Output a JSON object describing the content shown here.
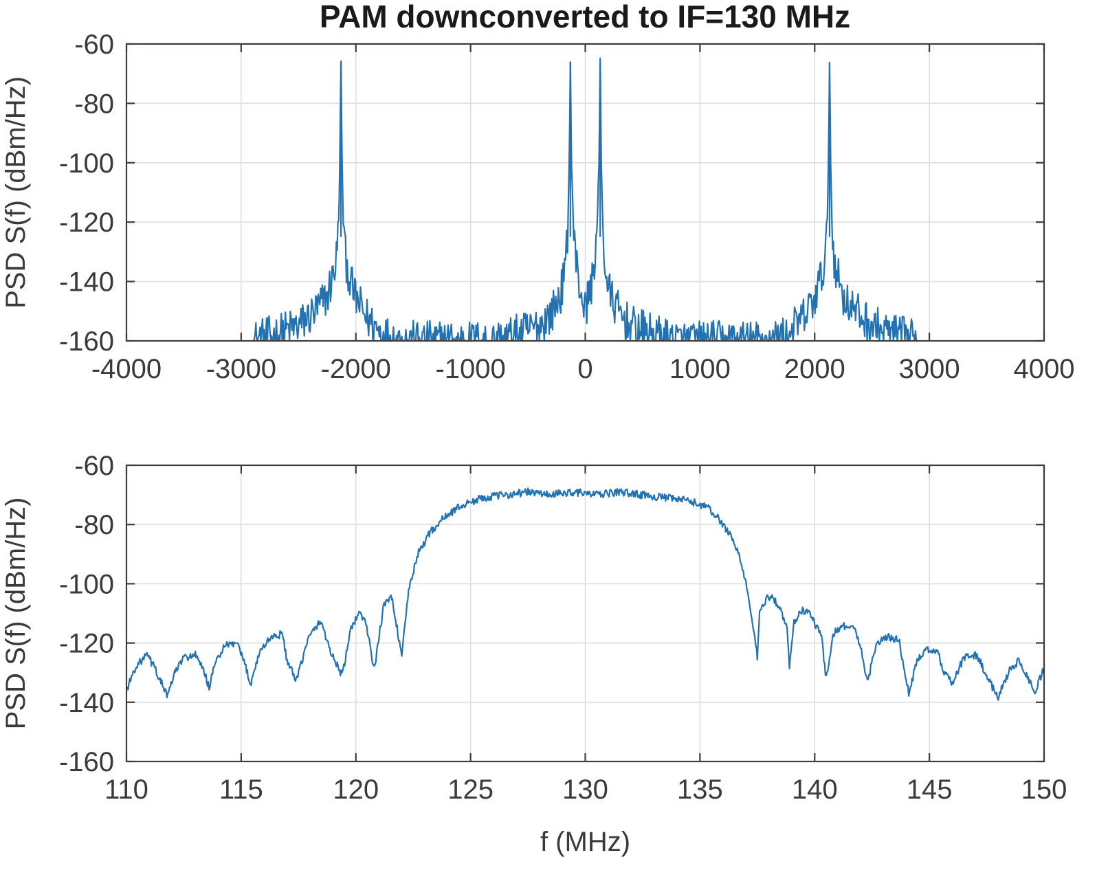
{
  "chart_data": [
    {
      "type": "line",
      "title": "PAM downconverted to IF=130 MHz",
      "xlabel": "",
      "ylabel": "PSD S(f)  (dBm/Hz)",
      "xlim": [
        -4000,
        4000
      ],
      "ylim": [
        -160,
        -60
      ],
      "xticks": [
        -4000,
        -3000,
        -2000,
        -1000,
        0,
        1000,
        2000,
        3000,
        4000
      ],
      "xtick_labels": [
        "-4000",
        "-3000",
        "-2000",
        "-1000",
        "0",
        "1000",
        "2000",
        "3000",
        "4000"
      ],
      "yticks": [
        -60,
        -80,
        -100,
        -120,
        -140,
        -160
      ],
      "ytick_labels": [
        "-60",
        "-80",
        "-100",
        "-120",
        "-140",
        "-160"
      ],
      "grid": true,
      "color": "#2271b1",
      "peaks": [
        -2130,
        -130,
        130,
        2130
      ],
      "peak_level": -66,
      "series": [
        {
          "name": "PSD",
          "x": [
            -2900,
            -2700,
            -2500,
            -2350,
            -2250,
            -2200,
            -2170,
            -2150,
            -2140,
            -2130,
            -2120,
            -2110,
            -2090,
            -2060,
            -2010,
            -1910,
            -1760,
            -1600,
            -800,
            -600,
            -400,
            -300,
            -220,
            -180,
            -155,
            -140,
            -130,
            -120,
            -100,
            -60,
            -20,
            0,
            20,
            60,
            100,
            120,
            130,
            140,
            155,
            180,
            220,
            300,
            400,
            600,
            800,
            1600,
            1760,
            1910,
            2010,
            2060,
            2090,
            2110,
            2120,
            2130,
            2140,
            2150,
            2170,
            2200,
            2250,
            2350,
            2500,
            2700,
            2900
          ],
          "y": [
            -160,
            -158,
            -155,
            -150,
            -145,
            -138,
            -132,
            -120,
            -100,
            -66,
            -100,
            -120,
            -132,
            -138,
            -145,
            -152,
            -158,
            -160,
            -160,
            -158,
            -155,
            -151,
            -145,
            -138,
            -125,
            -100,
            -66,
            -100,
            -125,
            -140,
            -146,
            -150,
            -146,
            -140,
            -125,
            -100,
            -66,
            -100,
            -125,
            -138,
            -145,
            -151,
            -155,
            -158,
            -160,
            -160,
            -158,
            -152,
            -145,
            -138,
            -132,
            -120,
            -100,
            -66,
            -100,
            -120,
            -132,
            -138,
            -145,
            -150,
            -155,
            -158,
            -160
          ]
        }
      ]
    },
    {
      "type": "line",
      "title": "",
      "xlabel": "f (MHz)",
      "ylabel": "PSD S(f)  (dBm/Hz)",
      "xlim": [
        110,
        150
      ],
      "ylim": [
        -160,
        -60
      ],
      "xticks": [
        110,
        115,
        120,
        125,
        130,
        135,
        140,
        145,
        150
      ],
      "xtick_labels": [
        "110",
        "115",
        "120",
        "125",
        "130",
        "135",
        "140",
        "145",
        "150"
      ],
      "yticks": [
        -60,
        -80,
        -100,
        -120,
        -140,
        -160
      ],
      "ytick_labels": [
        "-60",
        "-80",
        "-100",
        "-120",
        "-140",
        "-160"
      ],
      "grid": true,
      "color": "#2271b1",
      "series": [
        {
          "name": "PSD",
          "x": [
            110.0,
            110.4,
            110.9,
            111.2,
            111.5,
            111.8,
            112.1,
            112.5,
            113.0,
            113.4,
            113.6,
            113.9,
            114.3,
            114.8,
            115.2,
            115.4,
            115.8,
            116.3,
            116.8,
            117.0,
            117.4,
            117.9,
            118.3,
            118.5,
            118.9,
            119.4,
            119.8,
            120.1,
            120.4,
            120.8,
            121.2,
            121.5,
            121.6,
            121.8,
            122.0,
            122.3,
            122.7,
            123.2,
            123.8,
            124.5,
            125.5,
            126.5,
            127.5,
            128.5,
            129.5,
            130.5,
            131.5,
            132.5,
            133.5,
            134.5,
            135.3,
            135.8,
            136.3,
            136.7,
            137.0,
            137.3,
            137.5,
            137.6,
            137.8,
            138.1,
            138.4,
            138.8,
            138.9,
            139.1,
            139.4,
            139.8,
            140.3,
            140.5,
            140.8,
            141.2,
            141.7,
            142.0,
            142.3,
            142.7,
            143.2,
            143.7,
            143.8,
            144.1,
            144.5,
            145.0,
            145.4,
            145.6,
            146.0,
            146.5,
            147.0,
            147.2,
            147.6,
            148.0,
            148.5,
            148.9,
            149.2,
            149.6,
            150.0
          ],
          "y": [
            -136,
            -128,
            -124,
            -128,
            -133,
            -138,
            -130,
            -125,
            -124,
            -130,
            -135,
            -126,
            -121,
            -120,
            -128,
            -134,
            -123,
            -118,
            -117,
            -126,
            -133,
            -119,
            -114,
            -113,
            -123,
            -131,
            -115,
            -110,
            -112,
            -129,
            -108,
            -104,
            -106,
            -115,
            -125,
            -102,
            -90,
            -83,
            -78,
            -74,
            -71,
            -70,
            -69,
            -70,
            -69,
            -70,
            -69,
            -70,
            -71,
            -72,
            -74,
            -78,
            -83,
            -90,
            -100,
            -113,
            -125,
            -110,
            -106,
            -104,
            -107,
            -115,
            -128,
            -113,
            -109,
            -110,
            -118,
            -132,
            -117,
            -114,
            -115,
            -121,
            -133,
            -120,
            -118,
            -119,
            -125,
            -137,
            -125,
            -122,
            -124,
            -129,
            -134,
            -125,
            -124,
            -126,
            -133,
            -138,
            -129,
            -126,
            -130,
            -137,
            -128
          ]
        }
      ]
    }
  ]
}
